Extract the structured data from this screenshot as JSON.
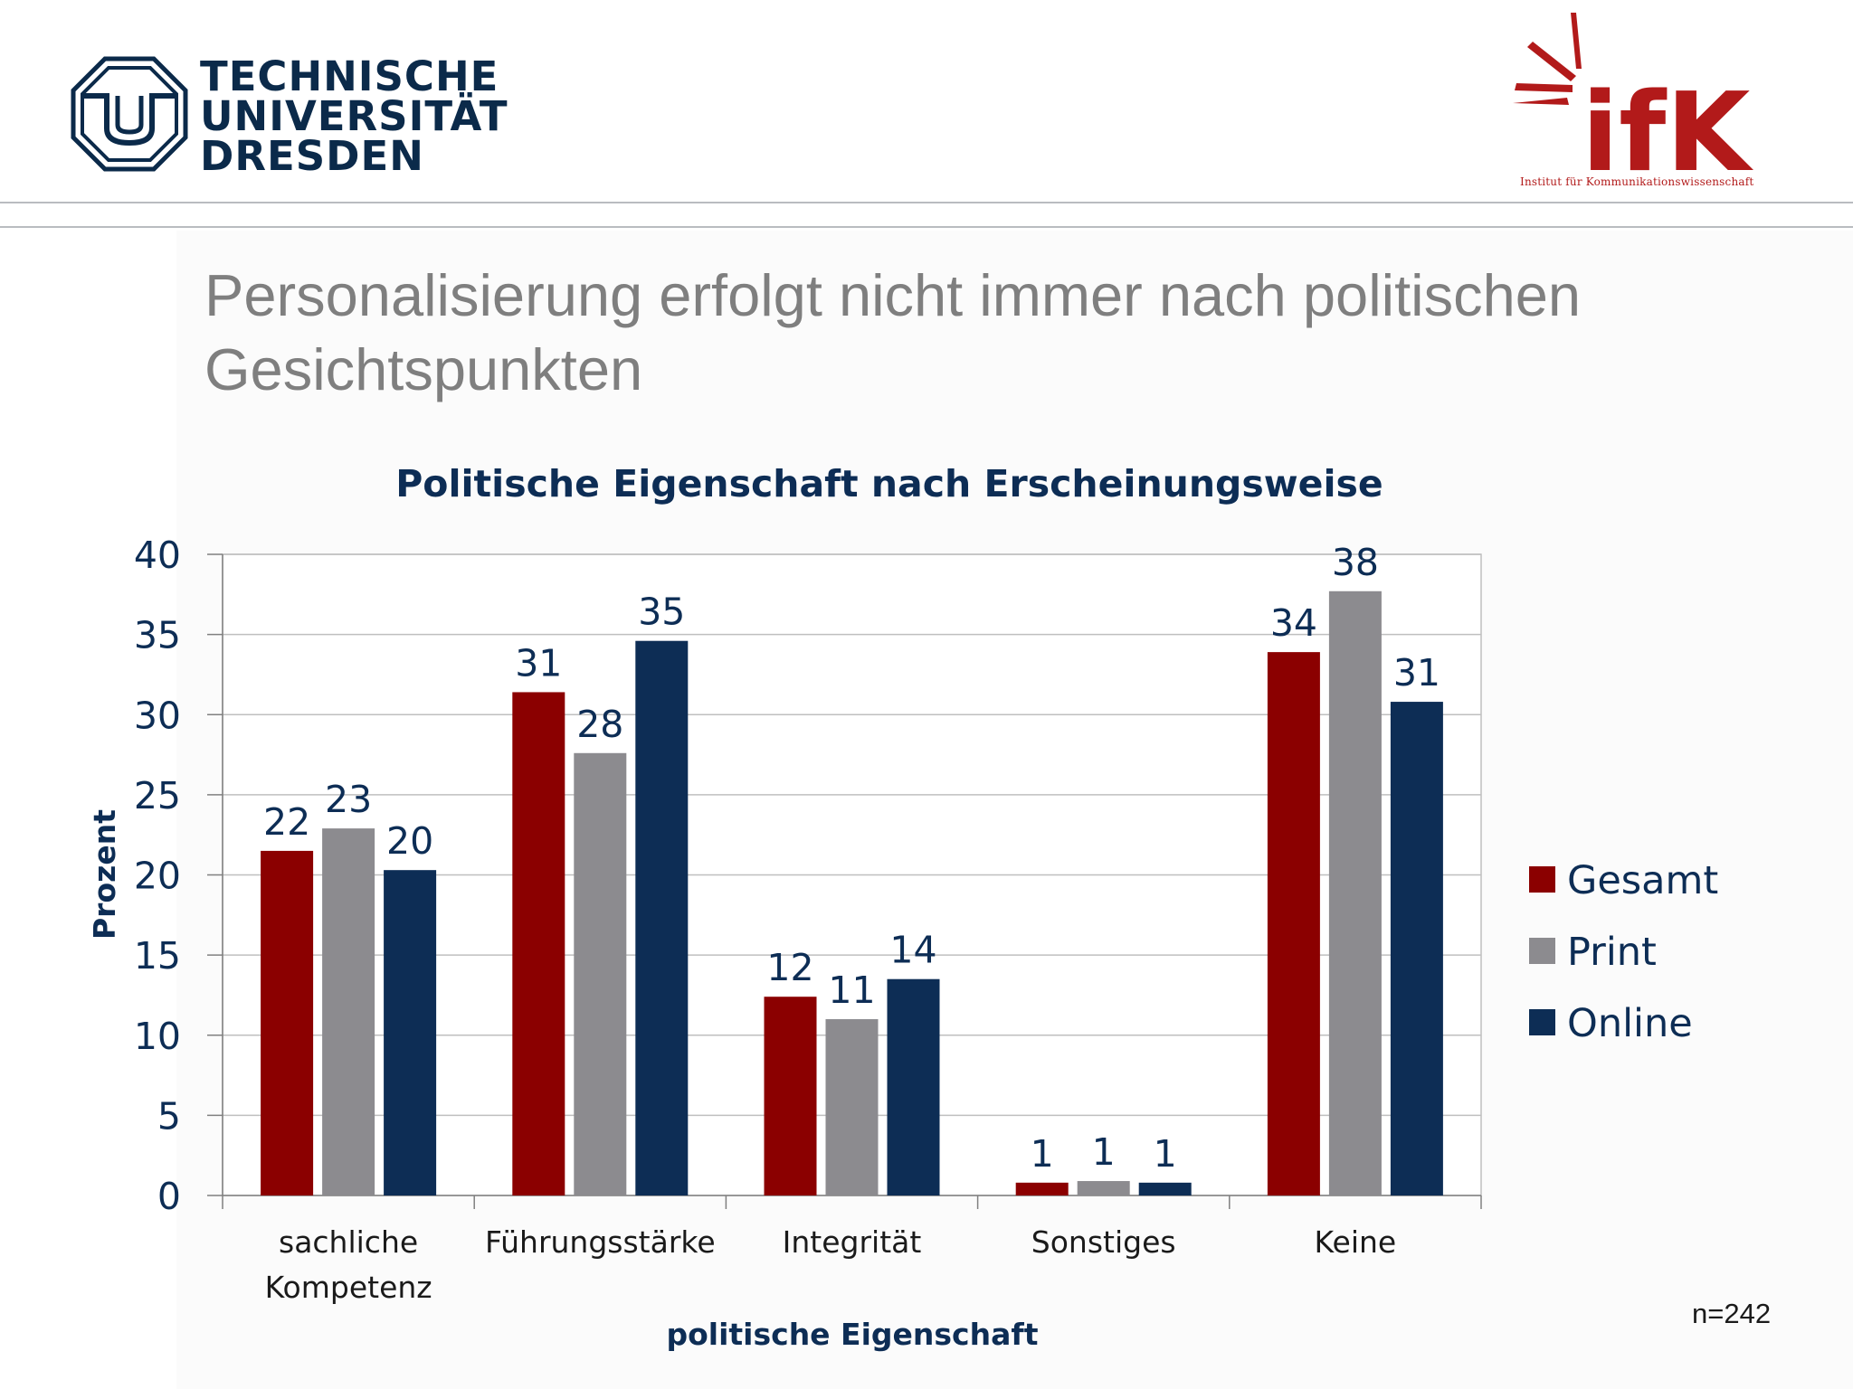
{
  "header": {
    "tu_logo_lines": [
      "TECHNISCHE",
      "UNIVERSITÄT",
      "DRESDEN"
    ],
    "ifk_logo_text": "ifK",
    "ifk_subtitle": "Institut für Kommunikationswissenschaft"
  },
  "slide": {
    "title_line1": "Personalisierung erfolgt nicht immer nach politischen",
    "title_line2": "Gesichtspunkten",
    "note": "n=242"
  },
  "colors": {
    "gesamt": "#8b0000",
    "print": "#8c8b8f",
    "online": "#0d2d55",
    "text_navy": "#0d2d55",
    "grid": "#bfbfbf",
    "ifk_red": "#b21a1a",
    "tu_navy": "#0b2a4a"
  },
  "chart_data": {
    "type": "bar",
    "title": "Politische Eigenschaft nach Erscheinungsweise",
    "xlabel": "politische Eigenschaft",
    "ylabel": "Prozent",
    "ylim": [
      0,
      40
    ],
    "yticks": [
      0,
      5,
      10,
      15,
      20,
      25,
      30,
      35,
      40
    ],
    "categories": [
      [
        "sachliche",
        "Kompetenz"
      ],
      [
        "Führungsstärke"
      ],
      [
        "Integrität"
      ],
      [
        "Sonstiges"
      ],
      [
        "Keine"
      ]
    ],
    "series": [
      {
        "name": "Gesamt",
        "values": [
          21.5,
          31.4,
          12.4,
          0.8,
          33.9
        ],
        "labels": [
          "22",
          "31",
          "12",
          "1",
          "34"
        ]
      },
      {
        "name": "Print",
        "values": [
          22.9,
          27.6,
          11.0,
          0.9,
          37.7
        ],
        "labels": [
          "23",
          "28",
          "11",
          "1",
          "38"
        ]
      },
      {
        "name": "Online",
        "values": [
          20.3,
          34.6,
          13.5,
          0.8,
          30.8
        ],
        "labels": [
          "20",
          "35",
          "14",
          "1",
          "31"
        ]
      }
    ],
    "grid": true,
    "legend_position": "right"
  }
}
